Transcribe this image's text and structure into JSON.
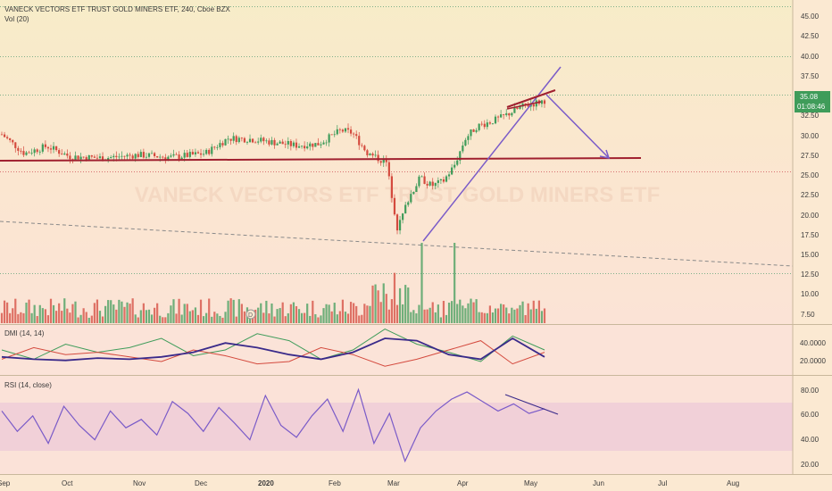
{
  "header": {
    "symbol_line": "VANECK VECTORS ETF TRUST GOLD MINERS ETF, 240, Cboe BZX",
    "volume_label": "Vol (20)",
    "watermark": "VANECK VECTORS ETF TRUST GOLD MINERS ETF"
  },
  "price_axis": {
    "ticks": [
      "45.00",
      "42.50",
      "40.00",
      "37.50",
      "35.00",
      "32.50",
      "30.00",
      "27.50",
      "25.00",
      "22.50",
      "20.00",
      "17.50",
      "15.00",
      "12.50",
      "10.00",
      "7.50"
    ],
    "last_price": "35.08",
    "countdown": "01:08:46"
  },
  "dmi": {
    "label": "DMI (14, 14)",
    "ticks": [
      "40.0000",
      "20.0000"
    ]
  },
  "rsi": {
    "label": "RSI (14, close)",
    "ticks": [
      "80.00",
      "60.00",
      "40.00",
      "20.00"
    ]
  },
  "time_axis": [
    "Sep",
    "Oct",
    "Nov",
    "Dec",
    "2020",
    "Feb",
    "Mar",
    "Apr",
    "May",
    "Jun",
    "Jul",
    "Aug"
  ],
  "colors": {
    "up": "#3f9c5a",
    "down": "#d44a3e",
    "support": "#a0202f",
    "trend": "#7a5bc8",
    "dmi_plus": "#3f9c5a",
    "dmi_minus": "#d44a3e",
    "adx": "#3a2a8a",
    "rsi": "#7a5bc8",
    "rsi_band": "#e8c4d6"
  },
  "chart_data": [
    {
      "type": "candlestick",
      "title": "VANECK VECTORS ETF TRUST GOLD MINERS ETF, 240, Cboe BZX",
      "ylim": [
        6,
        47
      ],
      "x": [
        "Sep",
        "Oct",
        "Nov",
        "Dec",
        "2020",
        "Feb",
        "Mar",
        "Apr",
        "May"
      ],
      "close_path": [
        [
          0,
          30.0
        ],
        [
          0.05,
          28.8
        ],
        [
          0.1,
          27.6
        ],
        [
          0.2,
          28.5
        ],
        [
          0.3,
          27.2
        ],
        [
          0.45,
          27.0
        ],
        [
          0.6,
          27.4
        ],
        [
          0.75,
          27.1
        ],
        [
          0.9,
          27.6
        ],
        [
          1.0,
          29.5
        ],
        [
          1.1,
          29.4
        ],
        [
          1.2,
          29.0
        ],
        [
          1.3,
          28.6
        ],
        [
          1.4,
          28.8
        ],
        [
          1.5,
          30.5
        ],
        [
          1.55,
          30.2
        ],
        [
          1.62,
          27.5
        ],
        [
          1.7,
          26.5
        ],
        [
          1.75,
          18.0
        ],
        [
          1.8,
          22.0
        ],
        [
          1.85,
          24.5
        ],
        [
          1.9,
          23.5
        ],
        [
          1.95,
          24.0
        ],
        [
          2.0,
          26.0
        ],
        [
          2.05,
          29.5
        ],
        [
          2.1,
          31.0
        ],
        [
          2.2,
          32.0
        ],
        [
          2.3,
          33.5
        ],
        [
          2.4,
          34.3
        ]
      ],
      "annotations": {
        "support_level": 27.2,
        "upper_dotted": 35.0,
        "lower_dotted": 25.4,
        "projection_target": 27.2
      },
      "volume": {
        "name": "Vol (20)"
      }
    },
    {
      "type": "line",
      "name": "DMI (14, 14)",
      "ylim": [
        10,
        50
      ],
      "series": [
        {
          "values": [
            30,
            22,
            35,
            28,
            32,
            40,
            25,
            30,
            44,
            38,
            22,
            30,
            48,
            35,
            28,
            20,
            42,
            30
          ]
        },
        {
          "values": [
            22,
            32,
            26,
            28,
            24,
            20,
            30,
            25,
            18,
            20,
            32,
            26,
            16,
            22,
            30,
            38,
            18,
            28
          ]
        },
        {
          "values": [
            24,
            22,
            21,
            23,
            22,
            24,
            28,
            36,
            32,
            26,
            22,
            28,
            40,
            38,
            26,
            22,
            40,
            24
          ]
        }
      ]
    },
    {
      "type": "line",
      "name": "RSI (14, close)",
      "ylim": [
        10,
        90
      ],
      "band": [
        30,
        70
      ],
      "series": [
        {
          "values": [
            62,
            45,
            58,
            35,
            66,
            50,
            38,
            62,
            48,
            55,
            42,
            70,
            60,
            45,
            65,
            52,
            38,
            75,
            50,
            40,
            58,
            72,
            45,
            80,
            35,
            60,
            20,
            48,
            62,
            72,
            78,
            70,
            62,
            68,
            60,
            64
          ]
        }
      ]
    }
  ]
}
